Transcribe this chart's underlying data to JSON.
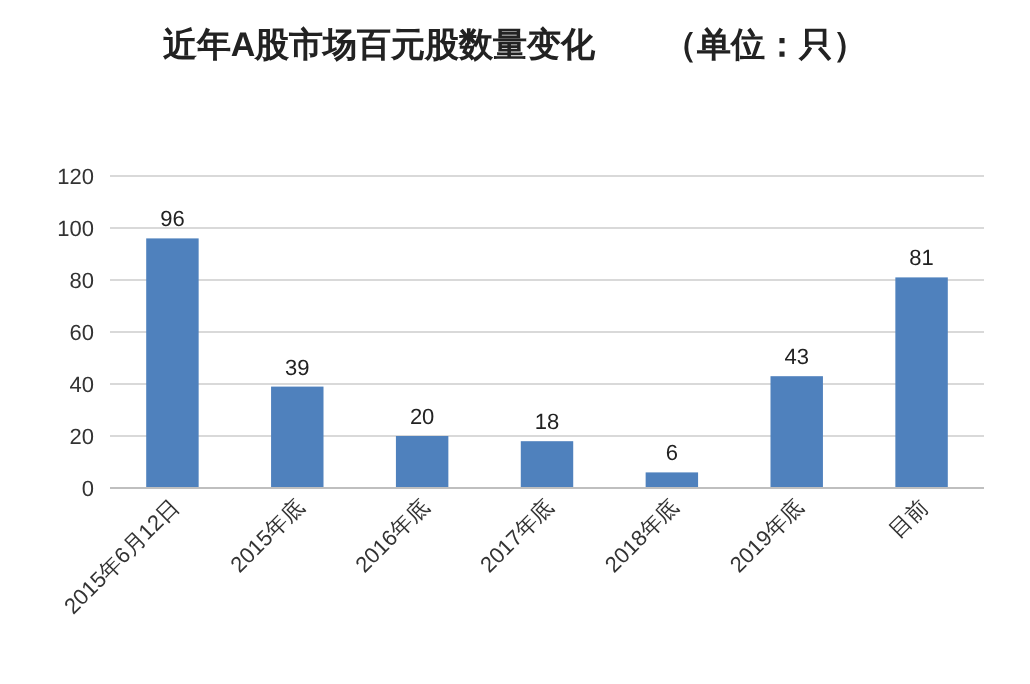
{
  "chart_data": {
    "type": "bar",
    "title": "近年A股市场百元股数量变化　　（单位：只）",
    "categories": [
      "2015年6月12日",
      "2015年底",
      "2016年底",
      "2017年底",
      "2018年底",
      "2019年底",
      "目前"
    ],
    "values": [
      96,
      39,
      20,
      18,
      6,
      43,
      81
    ],
    "color": "#4f81bd",
    "ylim": [
      0,
      120
    ],
    "yticks": [
      0,
      20,
      40,
      60,
      80,
      100,
      120
    ],
    "grid": "y",
    "data_labels": true
  }
}
